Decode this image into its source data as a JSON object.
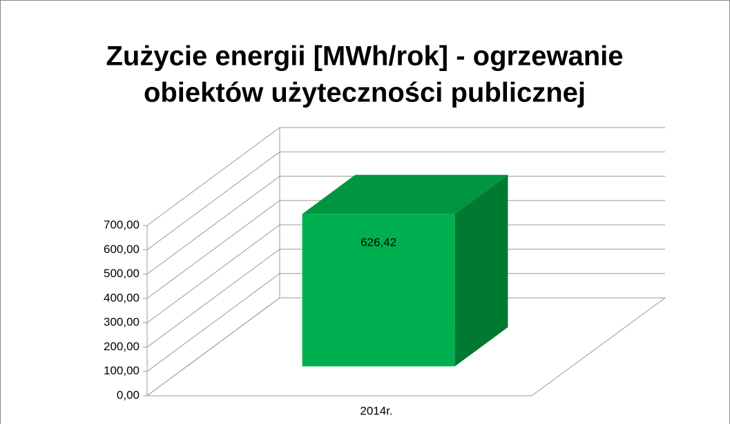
{
  "chart_data": {
    "type": "bar3d",
    "title": [
      "Zużycie energii   [MWh/rok] - ogrzewanie",
      "obiektów użyteczności publicznej"
    ],
    "categories": [
      "2014r."
    ],
    "values": [
      626.42
    ],
    "value_labels": [
      "626,42"
    ],
    "color": "#00b050",
    "ylim": [
      0,
      700
    ],
    "yticks": [
      {
        "value": 0,
        "label": "0,00"
      },
      {
        "value": 100,
        "label": "100,00"
      },
      {
        "value": 200,
        "label": "200,00"
      },
      {
        "value": 300,
        "label": "300,00"
      },
      {
        "value": 400,
        "label": "400,00"
      },
      {
        "value": 500,
        "label": "500,00"
      },
      {
        "value": 600,
        "label": "600,00"
      },
      {
        "value": 700,
        "label": "700,00"
      }
    ],
    "grid": true
  }
}
